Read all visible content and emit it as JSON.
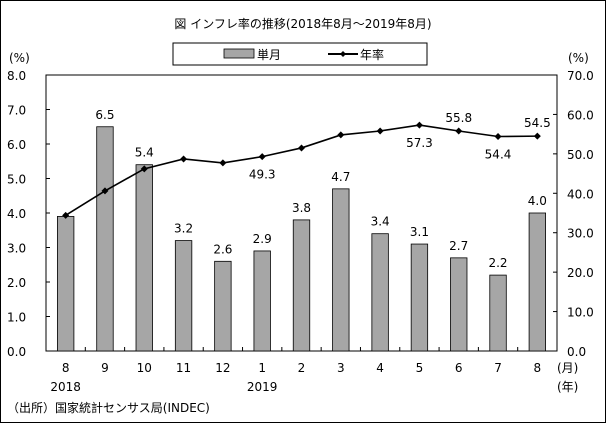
{
  "chart_data": {
    "type": "bar+line",
    "title": "図 インフレ率の推移(2018年8月～2019年8月)",
    "categories": [
      "8",
      "9",
      "10",
      "11",
      "12",
      "1",
      "2",
      "3",
      "4",
      "5",
      "6",
      "7",
      "8"
    ],
    "year_labels": [
      {
        "index": 0,
        "label": "2018"
      },
      {
        "index": 5,
        "label": "2019"
      }
    ],
    "xunit_month": "(月)",
    "xunit_year": "(年)",
    "left_axis": {
      "unit": "(%)",
      "range": [
        0,
        8
      ],
      "ticks": [
        "0.0",
        "1.0",
        "2.0",
        "3.0",
        "4.0",
        "5.0",
        "6.0",
        "7.0",
        "8.0"
      ]
    },
    "right_axis": {
      "unit": "(%)",
      "range": [
        0,
        70
      ],
      "ticks": [
        "0.0",
        "10.0",
        "20.0",
        "30.0",
        "40.0",
        "50.0",
        "60.0",
        "70.0"
      ]
    },
    "series": [
      {
        "name": "単月",
        "type": "bar",
        "axis": "left",
        "color": "#a6a6a6",
        "values": [
          3.9,
          6.5,
          5.4,
          3.2,
          2.6,
          2.9,
          3.8,
          4.7,
          3.4,
          3.1,
          2.7,
          2.2,
          4.0
        ],
        "labels": [
          "",
          "6.5",
          "5.4",
          "3.2",
          "2.6",
          "2.9",
          "3.8",
          "4.7",
          "3.4",
          "3.1",
          "2.7",
          "2.2",
          "4.0"
        ]
      },
      {
        "name": "年率",
        "type": "line",
        "axis": "right",
        "color": "#000000",
        "values": [
          34.4,
          40.6,
          46.2,
          48.7,
          47.7,
          49.3,
          51.5,
          54.8,
          55.8,
          57.3,
          55.8,
          54.4,
          54.5
        ],
        "labels": [
          "",
          "",
          "",
          "",
          "",
          "49.3",
          "",
          "",
          "",
          "57.3",
          "55.8",
          "54.4",
          "54.5"
        ]
      }
    ],
    "legend_placement": "top-center",
    "grid": false
  },
  "source": "（出所）国家統計センサス局(INDEC)"
}
